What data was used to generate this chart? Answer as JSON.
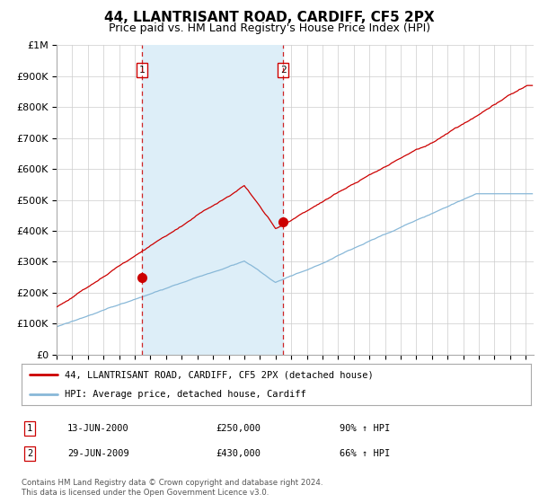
{
  "title": "44, LLANTRISANT ROAD, CARDIFF, CF5 2PX",
  "subtitle": "Price paid vs. HM Land Registry's House Price Index (HPI)",
  "title_fontsize": 11,
  "subtitle_fontsize": 9,
  "legend_line1": "44, LLANTRISANT ROAD, CARDIFF, CF5 2PX (detached house)",
  "legend_line2": "HPI: Average price, detached house, Cardiff",
  "red_color": "#cc0000",
  "blue_color": "#88b8d8",
  "shade_color": "#ddeef8",
  "annotation1_date": "13-JUN-2000",
  "annotation1_price": "£250,000",
  "annotation1_hpi": "90% ↑ HPI",
  "annotation2_date": "29-JUN-2009",
  "annotation2_price": "£430,000",
  "annotation2_hpi": "66% ↑ HPI",
  "footer": "Contains HM Land Registry data © Crown copyright and database right 2024.\nThis data is licensed under the Open Government Licence v3.0.",
  "ylim": [
    0,
    1000000
  ],
  "xlim_start": 1995.0,
  "xlim_end": 2025.5,
  "sale1_x": 2000.45,
  "sale1_y": 250000,
  "sale2_x": 2009.49,
  "sale2_y": 430000,
  "vline1_x": 2000.45,
  "vline2_x": 2009.49
}
